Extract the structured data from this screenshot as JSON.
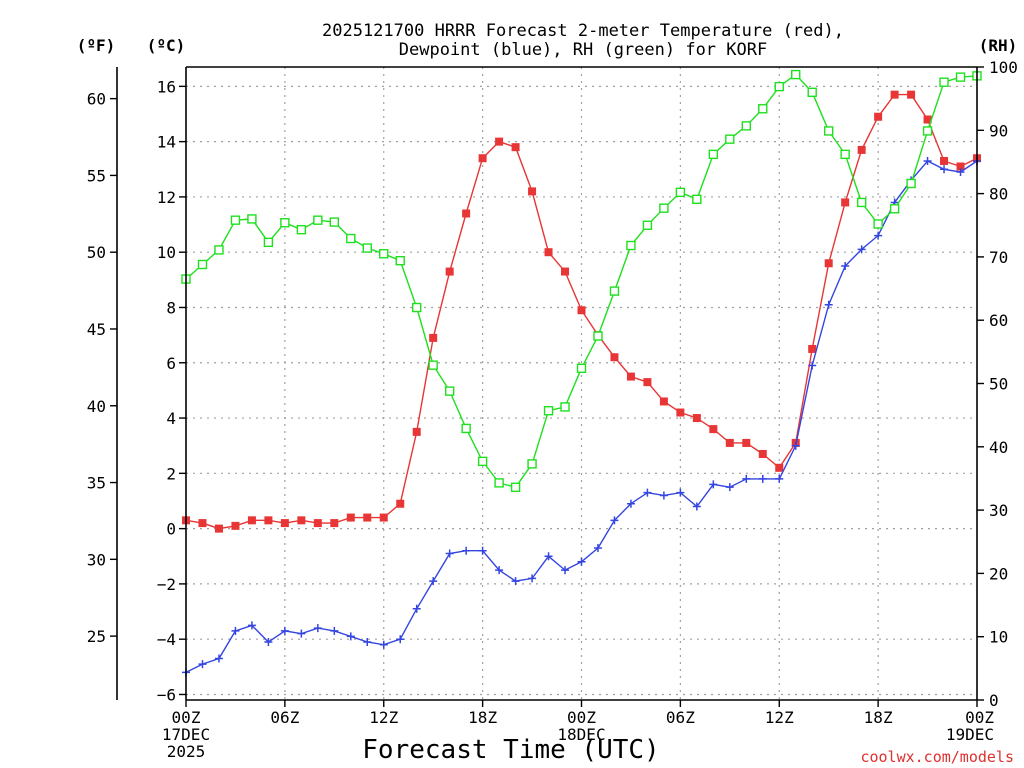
{
  "chart_data": {
    "type": "line",
    "title_lines": [
      "2025121700 HRRR Forecast 2-meter Temperature (red),",
      "Dewpoint (blue), RH (green) for KORF"
    ],
    "unit_labels": {
      "fahrenheit": "(ºF)",
      "celsius": "(ºC)",
      "rh": "(RH)"
    },
    "xlabel": "Forecast Time (UTC)",
    "credit": "coolwx.com/models",
    "x_range": [
      0,
      48
    ],
    "y_celsius_range": [
      -6.2,
      16.7
    ],
    "y_rh_range": [
      0,
      100
    ],
    "x_ticks": [
      {
        "x": 0,
        "lines": [
          "00Z",
          "17DEC",
          "2025"
        ]
      },
      {
        "x": 6,
        "lines": [
          "06Z"
        ]
      },
      {
        "x": 12,
        "lines": [
          "12Z"
        ]
      },
      {
        "x": 18,
        "lines": [
          "18Z"
        ]
      },
      {
        "x": 24,
        "lines": [
          "00Z",
          "18DEC"
        ]
      },
      {
        "x": 30,
        "lines": [
          "06Z"
        ]
      },
      {
        "x": 36,
        "lines": [
          "12Z"
        ]
      },
      {
        "x": 42,
        "lines": [
          "18Z"
        ]
      },
      {
        "x": 48,
        "lines": [
          "00Z",
          "19DEC"
        ]
      }
    ],
    "y_celsius_ticks": [
      -6,
      -4,
      -2,
      0,
      2,
      4,
      6,
      8,
      10,
      12,
      14,
      16
    ],
    "y_celsius_tick_labels": [
      "−6",
      "−4",
      "−2",
      "0",
      "2",
      "4",
      "6",
      "8",
      "10",
      "12",
      "14",
      "16"
    ],
    "y_fahrenheit_ticks": [
      25,
      30,
      35,
      40,
      45,
      50,
      55,
      60
    ],
    "y_rh_ticks": [
      0,
      10,
      20,
      30,
      40,
      50,
      60,
      70,
      80,
      90,
      100
    ],
    "grid": true,
    "colors": {
      "temperature": "#e83535",
      "dewpoint": "#3445e0",
      "rh": "#1ee01e",
      "grid": "#a0a0a0"
    },
    "series": [
      {
        "key": "temperature",
        "axis": "celsius",
        "marker": "filled-square",
        "values": [
          0.3,
          0.2,
          0.0,
          0.1,
          0.3,
          0.3,
          0.2,
          0.3,
          0.2,
          0.2,
          0.4,
          0.4,
          0.4,
          0.9,
          3.5,
          6.9,
          9.3,
          11.4,
          13.4,
          14.0,
          13.8,
          12.2,
          10.0,
          9.3,
          7.9,
          7.0,
          6.2,
          5.5,
          5.3,
          4.6,
          4.2,
          4.0,
          3.6,
          3.1,
          3.1,
          2.7,
          2.2,
          3.1,
          6.5,
          9.6,
          11.8,
          13.7,
          14.9,
          15.7,
          15.7,
          14.8,
          13.3,
          13.1,
          13.4
        ]
      },
      {
        "key": "dewpoint",
        "axis": "celsius",
        "marker": "plus",
        "values": [
          -5.2,
          -4.9,
          -4.7,
          -3.7,
          -3.5,
          -4.1,
          -3.7,
          -3.8,
          -3.6,
          -3.7,
          -3.9,
          -4.1,
          -4.2,
          -4.0,
          -2.9,
          -1.9,
          -0.9,
          -0.8,
          -0.8,
          -1.5,
          -1.9,
          -1.8,
          -1.0,
          -1.5,
          -1.2,
          -0.7,
          0.3,
          0.9,
          1.3,
          1.2,
          1.3,
          0.8,
          1.6,
          1.5,
          1.8,
          1.8,
          1.8,
          3.0,
          5.9,
          8.1,
          9.5,
          10.1,
          10.6,
          11.8,
          12.6,
          13.3,
          13.0,
          12.9,
          13.3
        ]
      },
      {
        "key": "rh",
        "axis": "rh",
        "marker": "open-square",
        "values": [
          66.5,
          68.8,
          71.1,
          75.8,
          76.0,
          72.3,
          75.4,
          74.3,
          75.8,
          75.5,
          72.9,
          71.4,
          70.5,
          69.4,
          62.0,
          52.9,
          48.8,
          42.9,
          37.7,
          34.3,
          33.6,
          37.3,
          45.7,
          46.3,
          52.4,
          57.5,
          64.6,
          71.8,
          75.0,
          77.7,
          80.2,
          79.1,
          86.2,
          88.6,
          90.7,
          93.4,
          96.9,
          98.8,
          96.0,
          89.9,
          86.2,
          78.6,
          75.2,
          77.6,
          81.6,
          89.9,
          97.6,
          98.4,
          98.6
        ]
      }
    ]
  }
}
